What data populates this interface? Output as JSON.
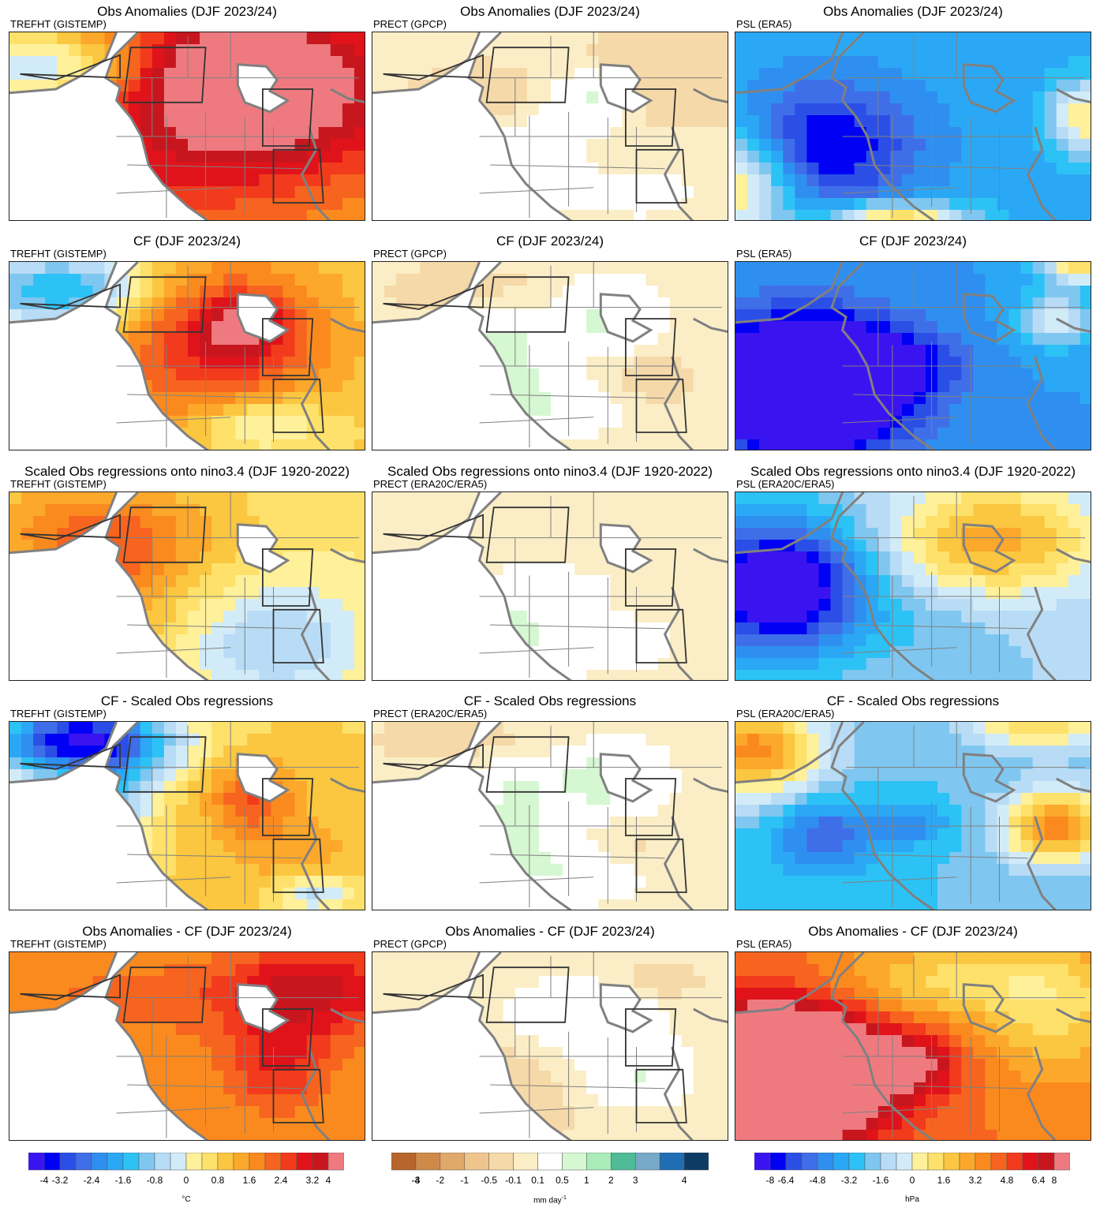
{
  "colors": {
    "temp": [
      "#3a14f0",
      "#0000f5",
      "#2b4fe6",
      "#3f6fe8",
      "#2f8ff0",
      "#2ba8f5",
      "#2dc2f5",
      "#7fc7f0",
      "#b8dcf5",
      "#d2ebf8",
      "#fff09a",
      "#fde16b",
      "#fbc640",
      "#fca82b",
      "#fb8a1e",
      "#f7641f",
      "#f23b1c",
      "#e0131a",
      "#c8161e",
      "#ee7a80"
    ],
    "prect": [
      "#b7652a",
      "#cf8a48",
      "#e0a86a",
      "#efc58e",
      "#f5d9a8",
      "#fbeec6",
      "#ffffff",
      "#d5f7d1",
      "#a9ecb9",
      "#4fbb97",
      "#78a9c9",
      "#1f6eb4",
      "#0d3b64"
    ],
    "land": "#808080"
  },
  "chart_data": {
    "type": "map-grid",
    "columns": [
      "TREFHT",
      "PRECT",
      "PSL"
    ],
    "panels": [
      {
        "title": "Obs Anomalies (DJF 2023/24)",
        "variable": "TREFHT (GISTEMP)",
        "field": "temp",
        "pattern": "obs_t"
      },
      {
        "title": "Obs Anomalies (DJF 2023/24)",
        "variable": "PRECT (GPCP)",
        "field": "prect",
        "pattern": "obs_p"
      },
      {
        "title": "Obs Anomalies (DJF 2023/24)",
        "variable": "PSL (ERA5)",
        "field": "temp",
        "pattern": "obs_s"
      },
      {
        "title": "CF (DJF 2023/24)",
        "variable": "TREFHT (GISTEMP)",
        "field": "temp",
        "pattern": "cf_t"
      },
      {
        "title": "CF (DJF 2023/24)",
        "variable": "PRECT (GPCP)",
        "field": "prect",
        "pattern": "cf_p"
      },
      {
        "title": "CF (DJF 2023/24)",
        "variable": "PSL (ERA5)",
        "field": "temp",
        "pattern": "cf_s"
      },
      {
        "title": "Scaled Obs regressions onto nino3.4 (DJF 1920-2022)",
        "variable": "TREFHT (GISTEMP)",
        "field": "temp",
        "pattern": "reg_t"
      },
      {
        "title": "Scaled Obs regressions onto nino3.4 (DJF 1920-2022)",
        "variable": "PRECT (ERA20C/ERA5)",
        "field": "prect",
        "pattern": "reg_p"
      },
      {
        "title": "Scaled Obs regressions onto nino3.4 (DJF 1920-2022)",
        "variable": "PSL (ERA20C/ERA5)",
        "field": "temp",
        "pattern": "reg_s"
      },
      {
        "title": "CF - Scaled Obs regressions",
        "variable": "TREFHT (GISTEMP)",
        "field": "temp",
        "pattern": "diff1_t"
      },
      {
        "title": "CF - Scaled Obs regressions",
        "variable": "PRECT (ERA20C/ERA5)",
        "field": "prect",
        "pattern": "diff1_p"
      },
      {
        "title": "CF - Scaled Obs regressions",
        "variable": "PSL (ERA20C/ERA5)",
        "field": "temp",
        "pattern": "diff1_s"
      },
      {
        "title": "Obs Anomalies - CF (DJF 2023/24)",
        "variable": "TREFHT (GISTEMP)",
        "field": "temp",
        "pattern": "diff2_t"
      },
      {
        "title": "Obs Anomalies - CF (DJF 2023/24)",
        "variable": "PRECT (GPCP)",
        "field": "prect",
        "pattern": "diff2_p"
      },
      {
        "title": "Obs Anomalies - CF (DJF 2023/24)",
        "variable": "PSL (ERA5)",
        "field": "temp",
        "pattern": "diff2_s"
      }
    ],
    "colorbars": [
      {
        "name": "temperature",
        "levels": [
          -4,
          -3.6,
          -3.2,
          -2.8,
          -2.4,
          -2,
          -1.6,
          -1.2,
          -0.8,
          -0.4,
          0,
          0.4,
          0.8,
          1.2,
          1.6,
          2,
          2.4,
          2.8,
          3.2,
          3.6,
          4
        ],
        "tick_labels": [
          "-4",
          "-3.2",
          "-2.4",
          "-1.6",
          "-0.8",
          "0",
          "0.8",
          "1.6",
          "2.4",
          "3.2",
          "4"
        ],
        "unit": "°C"
      },
      {
        "name": "precipitation",
        "levels": [
          -4,
          -3,
          -2,
          -1,
          -0.5,
          -0.1,
          0.1,
          0.5,
          1,
          2,
          3,
          4
        ],
        "tick_labels": [
          "-4",
          "-3",
          "-2",
          "-1",
          "-0.5",
          "-0.1",
          "0.1",
          "0.5",
          "1",
          "2",
          "3",
          "4"
        ],
        "unit_base": "mm day",
        "unit_sup": "-1"
      },
      {
        "name": "pressure",
        "levels": [
          -8,
          -7.2,
          -6.4,
          -5.6,
          -4.8,
          -4,
          -3.2,
          -2.4,
          -1.6,
          -0.8,
          0,
          0.8,
          1.6,
          2.4,
          3.2,
          4,
          4.8,
          5.6,
          6.4,
          7.2,
          8
        ],
        "tick_labels": [
          "-8",
          "-6.4",
          "-4.8",
          "-3.2",
          "-1.6",
          "0",
          "1.6",
          "3.2",
          "4.8",
          "6.4",
          "8"
        ],
        "unit": "hPa"
      }
    ]
  }
}
